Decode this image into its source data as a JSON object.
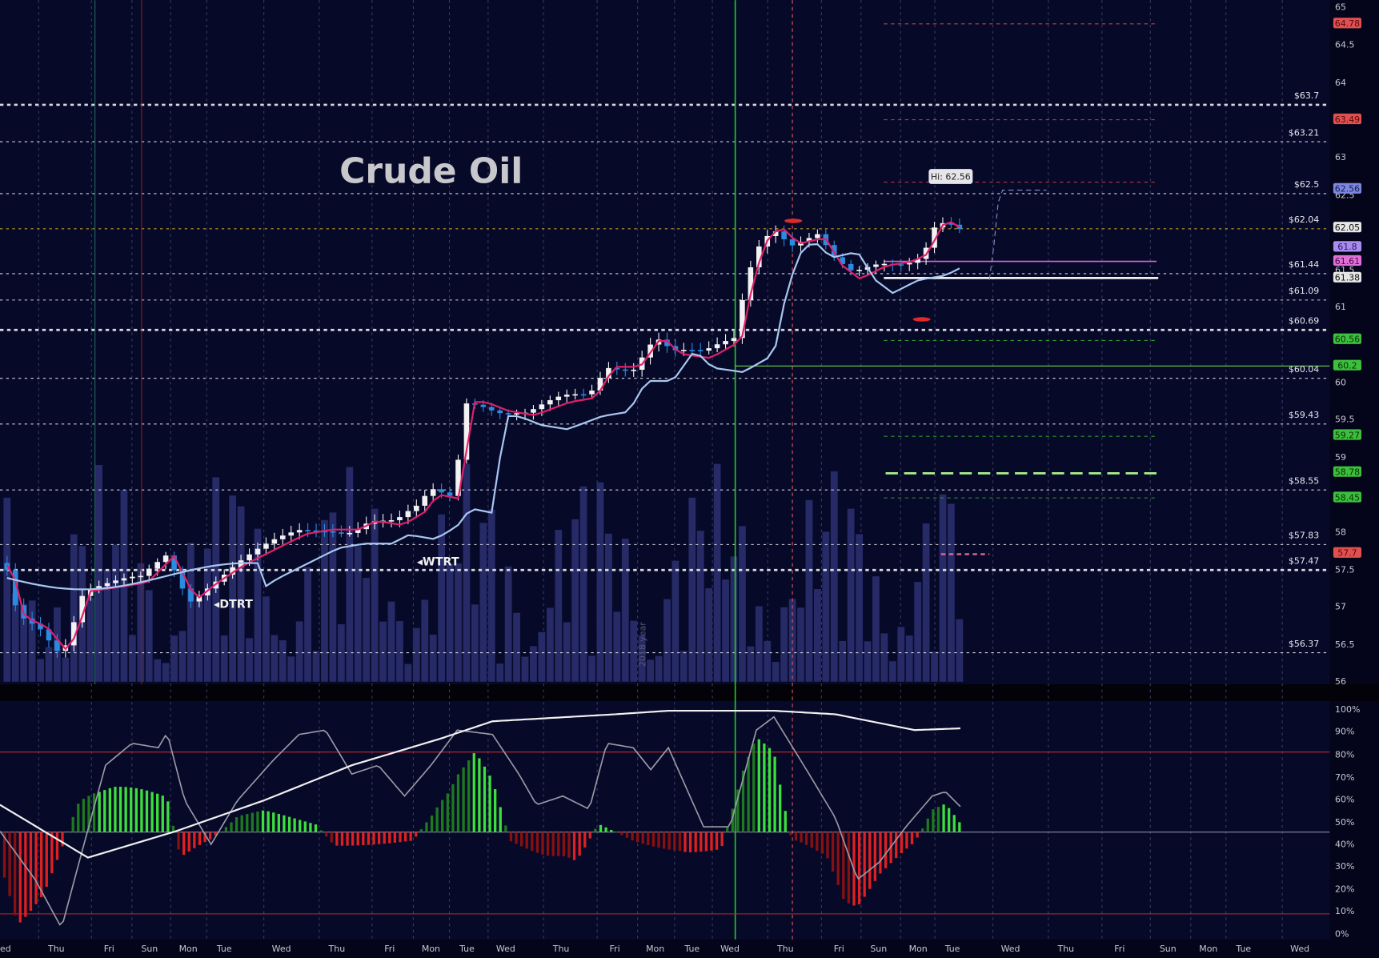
{
  "title": "Crude Oil",
  "annotations": {
    "high": "Hi: 62.56",
    "dtrt": "DTRT",
    "wtrt": "WTRT",
    "year": "2018 year"
  },
  "price_axis": [
    65,
    64.5,
    64,
    63,
    62.5,
    61.5,
    61,
    60,
    59.5,
    59,
    58,
    57.5,
    57,
    56.5,
    56
  ],
  "levels": [
    "$63.7",
    "$63.21",
    "$62.5",
    "$62.04",
    "$61.44",
    "$61.09",
    "$60.69",
    "$60.04",
    "$59.43",
    "$58.55",
    "$57.83",
    "$57.47",
    "$56.37"
  ],
  "tags": [
    64.78,
    63.49,
    62.56,
    62.05,
    61.8,
    61.61,
    61.38,
    60.56,
    60.2,
    59.27,
    58.78,
    58.45,
    57.7
  ],
  "time_axis": [
    "ed",
    "Thu",
    "Fri",
    "Sun",
    "Mon",
    "Tue",
    "Wed",
    "Thu",
    "Fri",
    "Mon",
    "Tue",
    "Wed",
    "Thu",
    "Fri",
    "Mon",
    "Tue",
    "Wed",
    "Thu",
    "Fri",
    "Sun",
    "Mon",
    "Tue",
    "Wed",
    "Thu",
    "Fri",
    "Sun",
    "Mon",
    "Tue",
    "Wed"
  ],
  "oscillator_axis": [
    "100%",
    "90%",
    "80%",
    "70%",
    "60%",
    "50%",
    "40%",
    "30%",
    "20%",
    "10%",
    "0%"
  ]
}
